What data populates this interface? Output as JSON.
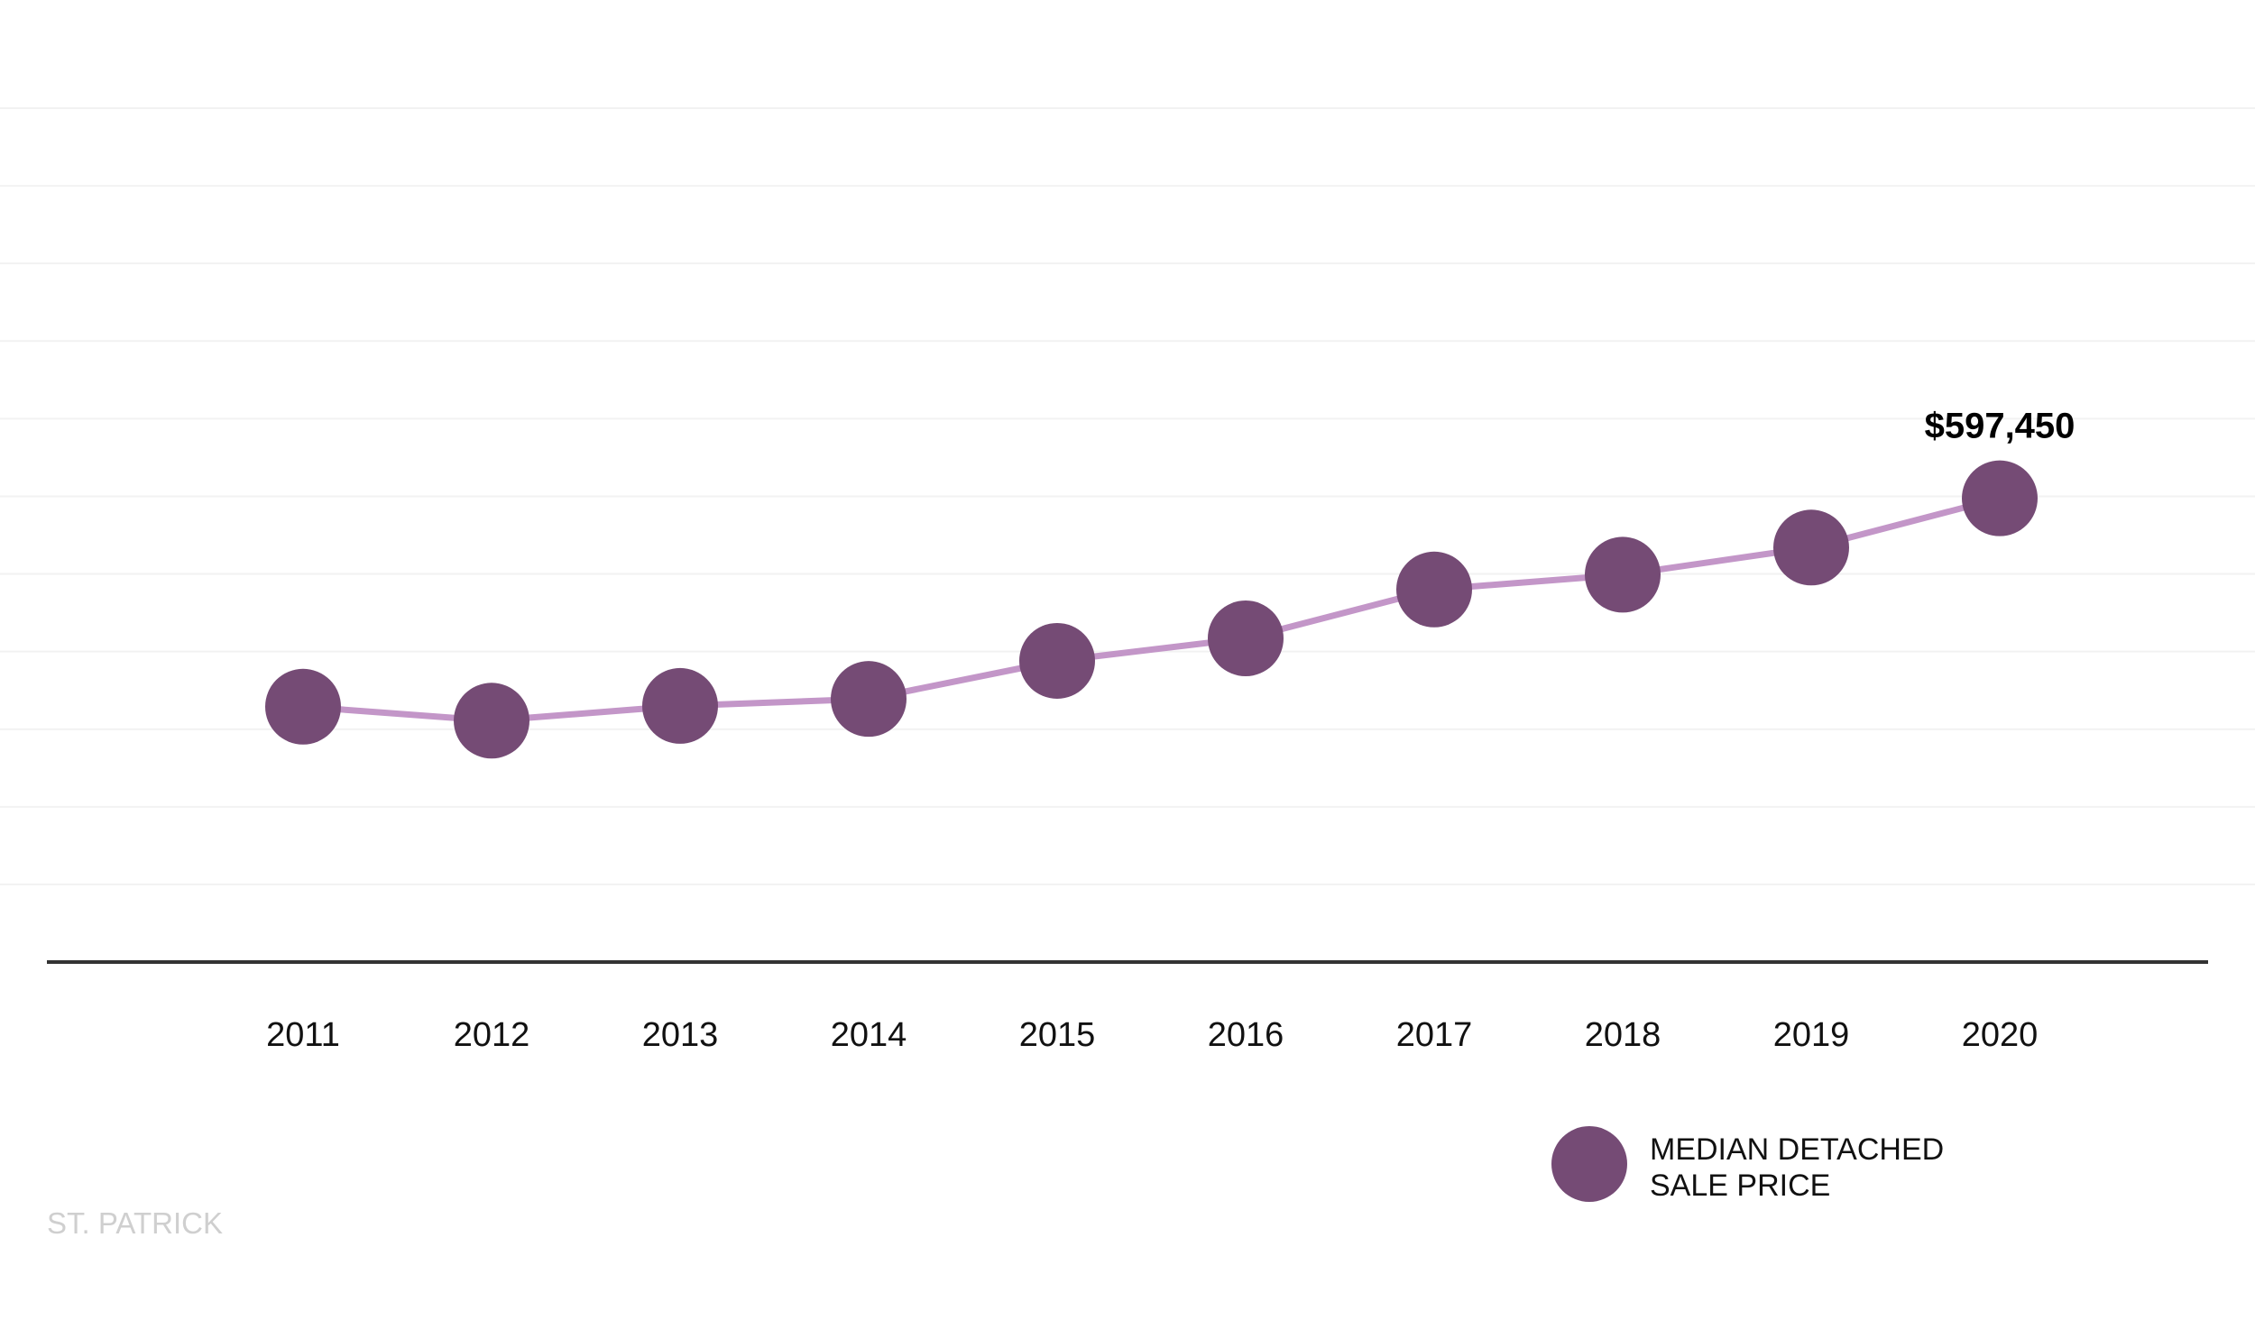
{
  "chart_data": {
    "type": "line",
    "categories": [
      "2011",
      "2012",
      "2013",
      "2014",
      "2015",
      "2016",
      "2017",
      "2018",
      "2019",
      "2020"
    ],
    "series": [
      {
        "name": "MEDIAN DETACHED SALE PRICE",
        "values": [
          329000,
          311000,
          330000,
          339000,
          388000,
          417000,
          480000,
          499000,
          534000,
          597450
        ]
      }
    ],
    "annotations": [
      {
        "category": "2020",
        "label": "$597,450"
      }
    ],
    "ylim": [
      0,
      1100000
    ],
    "y_grid_step": 100000,
    "grid": true,
    "xlabel": "",
    "ylabel": "",
    "legend": {
      "position": "bottom-right",
      "lines": [
        "MEDIAN DETACHED",
        "SALE PRICE"
      ]
    },
    "footer_label": "ST. PATRICK",
    "colors": {
      "marker": "#754b75",
      "line": "#c396c8",
      "grid": "#f2f2f2",
      "axis": "#333333",
      "tick_text": "#111111",
      "annotation_text": "#000000",
      "footer_text": "#cfcfcf"
    }
  }
}
